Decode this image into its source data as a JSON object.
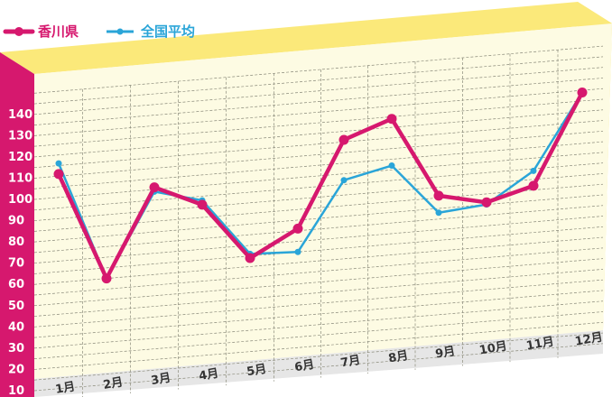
{
  "chart_data": {
    "type": "line",
    "categories": [
      "1月",
      "2月",
      "3月",
      "4月",
      "5月",
      "6月",
      "7月",
      "8月",
      "9月",
      "10月",
      "11月",
      "12月"
    ],
    "series": [
      {
        "name": "香川県",
        "color": "#d6186e",
        "values": [
          111,
          60,
          101,
          91,
          64,
          76,
          116,
          124,
          86,
          81,
          87,
          129
        ]
      },
      {
        "name": "全国平均",
        "color": "#2aa5d8",
        "values": [
          116,
          60,
          99,
          93,
          66,
          65,
          97,
          102,
          78,
          80,
          94,
          129
        ]
      }
    ],
    "yticks": [
      10,
      20,
      30,
      40,
      50,
      60,
      70,
      80,
      90,
      100,
      110,
      120,
      130,
      140
    ],
    "ylim": [
      0,
      150
    ],
    "grid": true,
    "legend_position": "top-left",
    "colors": {
      "top_face": "#fbe97a",
      "plot_bg": "#fdfbe3",
      "grid_line": "#8a8a7a",
      "axis_band": "#d6186e",
      "floor": "#e6e6e6"
    }
  }
}
